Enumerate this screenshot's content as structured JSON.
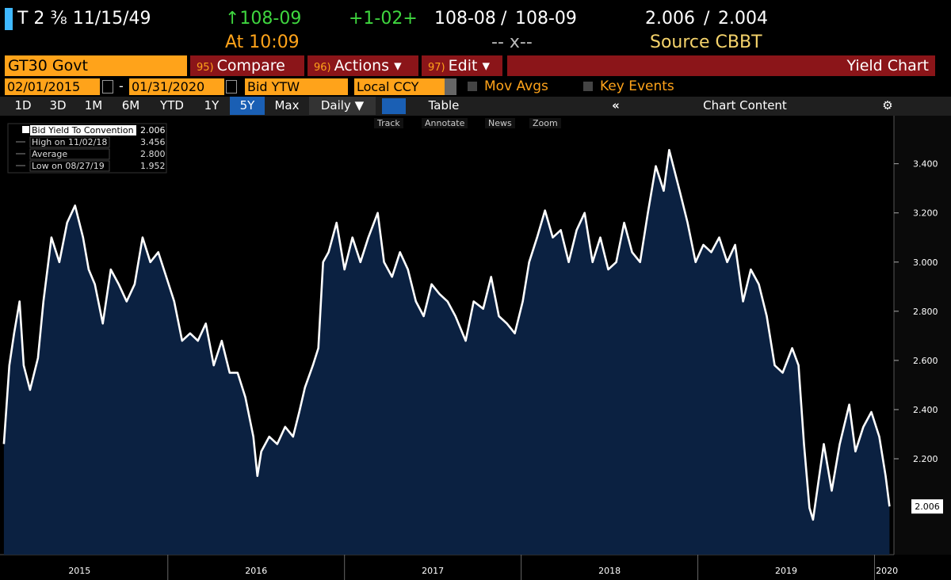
{
  "header": {
    "security": "T 2 ⅜ 11/15/49",
    "price": "↑108-09",
    "change": "+1-02+",
    "bid": "108-08",
    "slash": "/",
    "ask": "108-09",
    "bid_yield": "2.006",
    "ask_yield": "2.004",
    "time": "At 10:09",
    "separator": "-- x--",
    "source": "Source CBBT"
  },
  "command_bar": {
    "ticker": "GT30 Govt",
    "menus": [
      {
        "key": "95)",
        "label": "Compare"
      },
      {
        "key": "96)",
        "label": "Actions ▾"
      },
      {
        "key": "97)",
        "label": "Edit ▾"
      }
    ],
    "function": "Yield Chart"
  },
  "controls": {
    "start": "02/01/2015",
    "dash": "-",
    "end": "01/31/2020",
    "field": "Bid YTW",
    "currency": "Local CCY",
    "mov_avgs": "Mov Avgs",
    "key_events": "Key Events"
  },
  "toolbar": {
    "ranges": [
      "1D",
      "3D",
      "1M",
      "6M",
      "YTD",
      "1Y",
      "5Y",
      "Max"
    ],
    "selected_range": 6,
    "frequency": "Daily ▼",
    "table": "Table",
    "collapse": "«",
    "chart_content": "Chart Content"
  },
  "chart_tools": [
    "Track",
    "Annotate",
    "News",
    "Zoom"
  ],
  "chart_data": {
    "type": "line",
    "series": [
      {
        "name": "Bid Yield To Convention",
        "color": "#ffffff",
        "values": [
          2.26,
          2.58,
          2.71,
          2.84,
          2.58,
          2.48,
          2.61,
          2.84,
          3.1,
          3.0,
          3.16,
          3.23,
          3.1,
          2.97,
          2.91,
          2.75,
          2.97,
          2.91,
          2.84,
          2.91,
          3.1,
          3.0,
          3.04,
          2.94,
          2.84,
          2.68,
          2.71,
          2.68,
          2.75,
          2.58,
          2.68,
          2.55,
          2.55,
          2.45,
          2.29,
          2.13,
          2.23,
          2.29,
          2.26,
          2.33,
          2.29,
          2.39,
          2.49,
          2.58,
          2.65,
          3.0,
          3.04,
          3.16,
          2.97,
          3.1,
          3.0,
          3.1,
          3.2,
          3.0,
          2.94,
          3.04,
          2.97,
          2.84,
          2.78,
          2.91,
          2.87,
          2.84,
          2.78,
          2.68,
          2.84,
          2.81,
          2.94,
          2.78,
          2.75,
          2.71,
          2.84,
          3.0,
          3.1,
          3.21,
          3.1,
          3.13,
          3.0,
          3.13,
          3.2,
          3.0,
          3.1,
          2.97,
          3.0,
          3.16,
          3.04,
          3.0,
          3.2,
          3.39,
          3.29,
          3.456,
          3.29,
          3.16,
          3.0,
          3.07,
          3.04,
          3.1,
          3.0,
          3.07,
          2.84,
          2.97,
          2.91,
          2.78,
          2.58,
          2.55,
          2.65,
          2.58,
          2.26,
          2.0,
          1.952,
          2.26,
          2.07,
          2.26,
          2.42,
          2.23,
          2.33,
          2.39,
          2.29,
          2.13,
          2.006
        ]
      }
    ],
    "x": [
      2015.072,
      2015.103,
      2015.13,
      2015.161,
      2015.184,
      2015.22,
      2015.265,
      2015.296,
      2015.341,
      2015.386,
      2015.43,
      2015.475,
      2015.52,
      2015.552,
      2015.587,
      2015.632,
      2015.677,
      2015.722,
      2015.767,
      2015.812,
      2015.857,
      2015.901,
      2015.946,
      2015.991,
      2016.036,
      2016.081,
      2016.126,
      2016.17,
      2016.215,
      2016.26,
      2016.305,
      2016.35,
      2016.395,
      2016.439,
      2016.484,
      2016.507,
      2016.529,
      2016.574,
      2016.619,
      2016.664,
      2016.709,
      2016.744,
      2016.776,
      2016.821,
      2016.852,
      2016.879,
      2016.91,
      2016.955,
      2017.0,
      2017.045,
      2017.09,
      2017.135,
      2017.188,
      2017.224,
      2017.269,
      2017.314,
      2017.359,
      2017.404,
      2017.448,
      2017.493,
      2017.538,
      2017.583,
      2017.628,
      2017.686,
      2017.731,
      2017.785,
      2017.83,
      2017.874,
      2017.919,
      2017.964,
      2018.009,
      2018.045,
      2018.09,
      2018.135,
      2018.179,
      2018.224,
      2018.269,
      2018.314,
      2018.359,
      2018.404,
      2018.448,
      2018.493,
      2018.538,
      2018.583,
      2018.628,
      2018.673,
      2018.717,
      2018.762,
      2018.807,
      2018.838,
      2018.897,
      2018.942,
      2018.987,
      2019.031,
      2019.076,
      2019.121,
      2019.166,
      2019.211,
      2019.256,
      2019.3,
      2019.345,
      2019.39,
      2019.435,
      2019.48,
      2019.534,
      2019.57,
      2019.601,
      2019.632,
      2019.652,
      2019.713,
      2019.758,
      2019.803,
      2019.857,
      2019.892,
      2019.937,
      2019.982,
      2020.027,
      2020.063,
      2020.085
    ],
    "xlim": [
      2015.05,
      2020.11
    ],
    "xticks": [
      {
        "value": 2015.5,
        "label": "2015"
      },
      {
        "value": 2016.5,
        "label": "2016"
      },
      {
        "value": 2017.5,
        "label": "2017"
      },
      {
        "value": 2018.5,
        "label": "2018"
      },
      {
        "value": 2019.5,
        "label": "2019"
      },
      {
        "value": 2020.07,
        "label": "2020"
      }
    ],
    "year_lines": [
      2016,
      2017,
      2018,
      2019,
      2020
    ],
    "ylim": [
      1.81,
      3.56
    ],
    "yticks": [
      {
        "value": 2.2,
        "label": "2.200"
      },
      {
        "value": 2.4,
        "label": "2.400"
      },
      {
        "value": 2.6,
        "label": "2.600"
      },
      {
        "value": 2.8,
        "label": "2.800"
      },
      {
        "value": 3.0,
        "label": "3.000"
      },
      {
        "value": 3.2,
        "label": "3.200"
      },
      {
        "value": 3.4,
        "label": "3.400"
      }
    ],
    "grid": false,
    "area_color": "#0b2141",
    "last_value_label": "2.006",
    "legend": {
      "value": "2.006",
      "stats": [
        {
          "label": "High on 11/02/18",
          "value": "3.456"
        },
        {
          "label": "Average",
          "value": "2.800"
        },
        {
          "label": "Low on 08/27/19",
          "value": "1.952"
        }
      ]
    }
  }
}
